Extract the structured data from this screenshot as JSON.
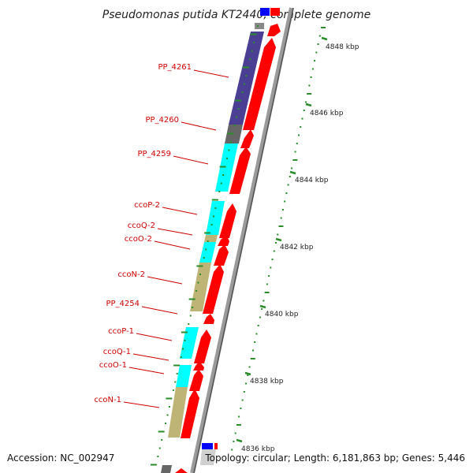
{
  "title": "Pseudomonas putida KT2440, complete genome",
  "footer": {
    "accession": "Accession: NC_002947",
    "topology": "Topology: circular; Length: 6,181,863 bp; Genes: 5,446"
  },
  "colors": {
    "cds_forward": "#ff0000",
    "gene_reverse": "#00ffff",
    "gene_other": "#bdb475",
    "gene_hypothetical": "#4b3f93",
    "gene_dark": "#666666",
    "tick": "#2a8c2a",
    "label": "#cc0000"
  },
  "scale_ticks": [
    {
      "label": "4848 kbp"
    },
    {
      "label": "4846 kbp"
    },
    {
      "label": "4844 kbp"
    },
    {
      "label": "4842 kbp"
    },
    {
      "label": "4840 kbp"
    },
    {
      "label": "4838 kbp"
    },
    {
      "label": "4836 kbp"
    }
  ],
  "gene_labels": [
    {
      "text": "PP_4261"
    },
    {
      "text": "PP_4260"
    },
    {
      "text": "PP_4259"
    },
    {
      "text": "ccoP-2"
    },
    {
      "text": "ccoQ-2"
    },
    {
      "text": "ccoO-2"
    },
    {
      "text": "ccoN-2"
    },
    {
      "text": "PP_4254"
    },
    {
      "text": "ccoP-1"
    },
    {
      "text": "ccoQ-1"
    },
    {
      "text": "ccoO-1"
    },
    {
      "text": "ccoN-1"
    }
  ]
}
